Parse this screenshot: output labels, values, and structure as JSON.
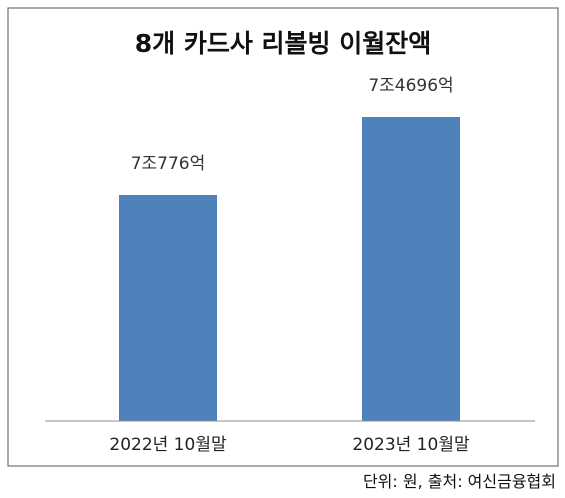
{
  "chart_data": {
    "type": "bar",
    "title": "8개 카드사 리볼빙 이월잔액",
    "categories": [
      "2022년 10월말",
      "2023년 10월말"
    ],
    "values": [
      70776,
      74696
    ],
    "value_unit": "억 원",
    "data_labels": [
      "7조776억",
      "7조4696억"
    ],
    "bar_color": "#4f81bd",
    "grid": false,
    "legend": "none"
  },
  "source_note": "단위: 원, 출처: 여신금융협회"
}
